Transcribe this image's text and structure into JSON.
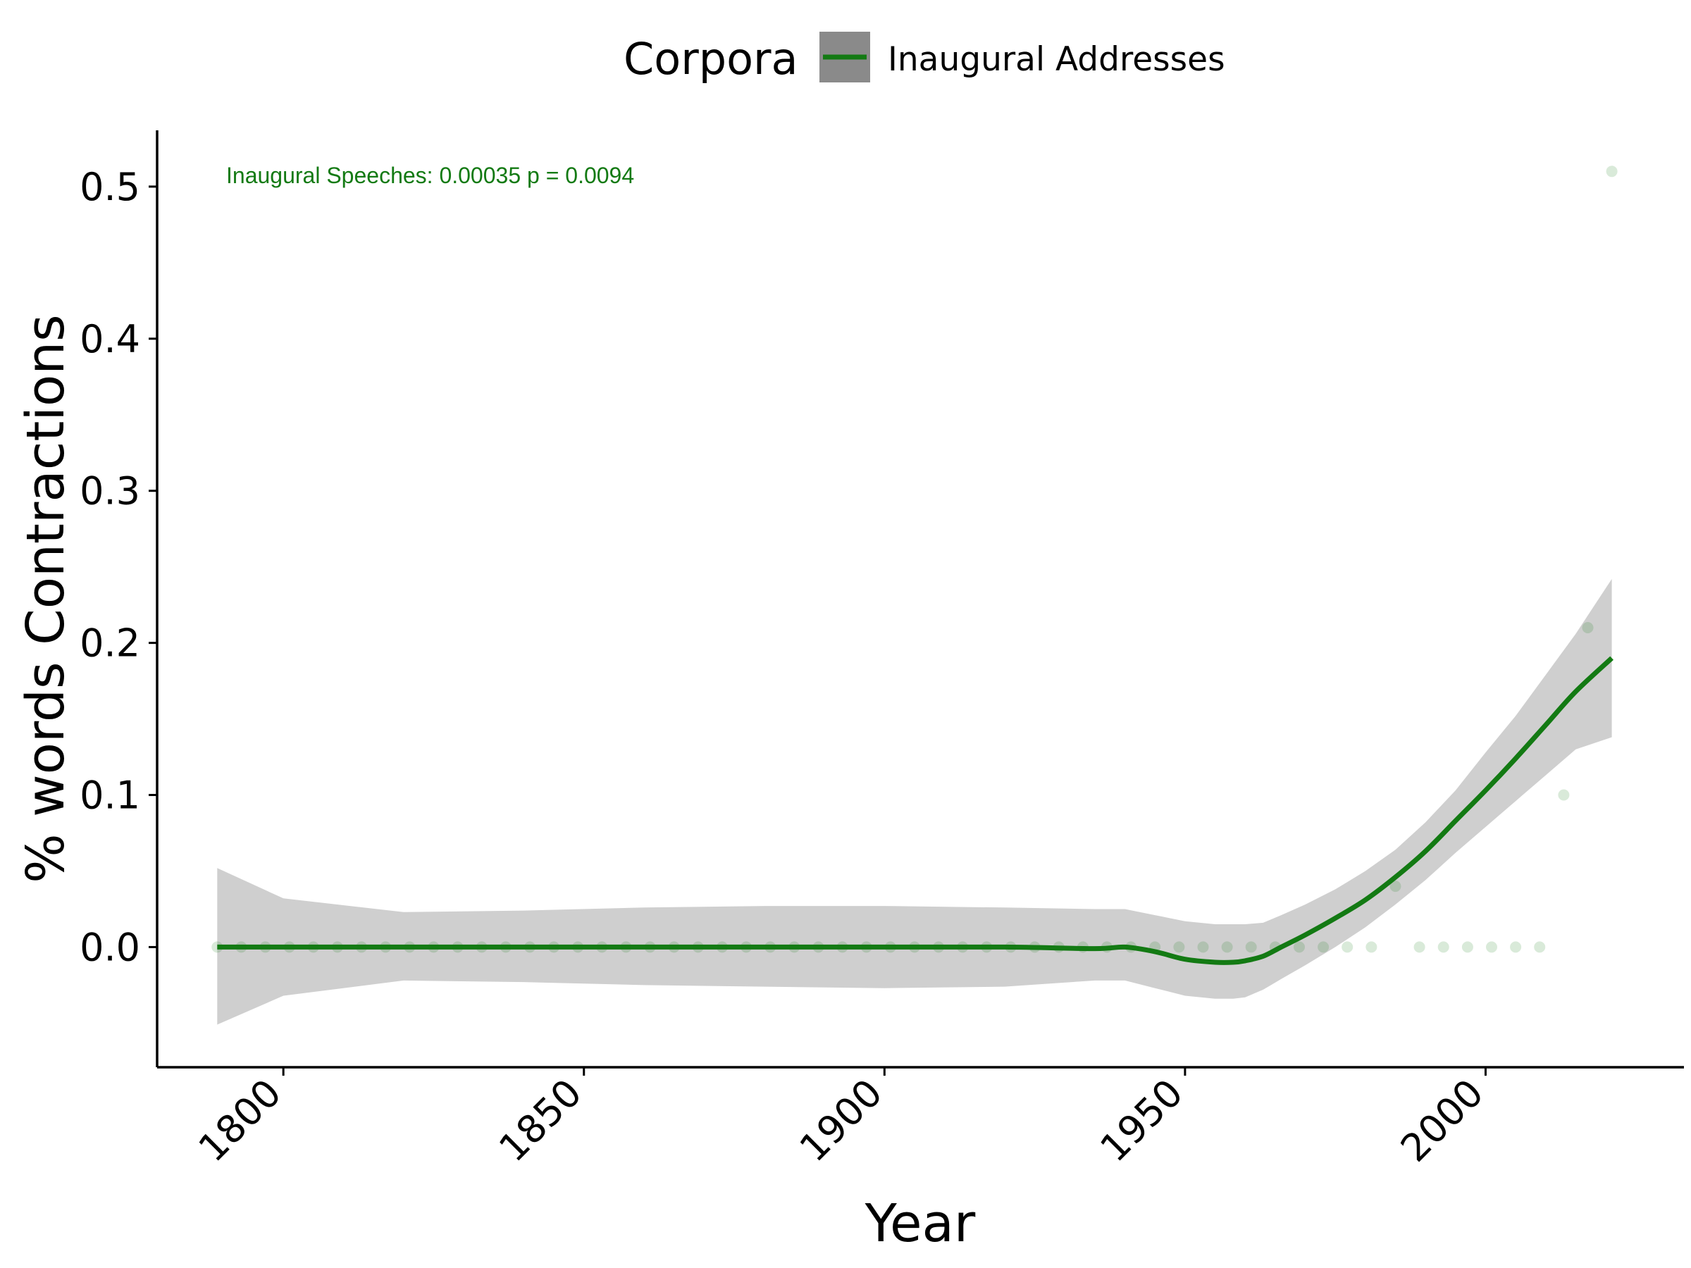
{
  "chart_data": {
    "type": "scatter",
    "title": "",
    "xlabel": "Year",
    "ylabel": "% words Contractions",
    "xlim": [
      1779,
      2033
    ],
    "ylim": [
      -0.079,
      0.537
    ],
    "x_ticks": [
      1800,
      1850,
      1900,
      1950,
      2000
    ],
    "x_tick_labels": [
      "1800",
      "1850",
      "1900",
      "1950",
      "2000"
    ],
    "y_ticks": [
      0.0,
      0.1,
      0.2,
      0.3,
      0.4,
      0.5
    ],
    "y_tick_labels": [
      "0.0",
      "0.1",
      "0.2",
      "0.3",
      "0.4",
      "0.5"
    ],
    "grid": false,
    "legend": {
      "title": "Corpora",
      "placement": "top",
      "entries": [
        "Inaugural Addresses"
      ]
    },
    "annotation": "Inaugural Speeches:  0.00035  p =  0.0094",
    "colors": {
      "series": "#137a13",
      "band": "#cfcfcf",
      "legend_key_bg": "#8a8a8a"
    },
    "series": [
      {
        "name": "Inaugural Addresses",
        "kind": "points",
        "x": [
          1789,
          1793,
          1797,
          1801,
          1805,
          1809,
          1813,
          1817,
          1821,
          1825,
          1829,
          1833,
          1837,
          1841,
          1845,
          1849,
          1853,
          1857,
          1861,
          1865,
          1869,
          1873,
          1877,
          1881,
          1885,
          1889,
          1893,
          1897,
          1901,
          1905,
          1909,
          1913,
          1917,
          1921,
          1925,
          1929,
          1933,
          1937,
          1941,
          1945,
          1949,
          1953,
          1957,
          1961,
          1965,
          1969,
          1973,
          1977,
          1981,
          1985,
          1989,
          1993,
          1997,
          2001,
          2005,
          2009,
          2013,
          2017,
          2021
        ],
        "values": [
          0,
          0,
          0,
          0,
          0,
          0,
          0,
          0,
          0,
          0,
          0,
          0,
          0,
          0,
          0,
          0,
          0,
          0,
          0,
          0,
          0,
          0,
          0,
          0,
          0,
          0,
          0,
          0,
          0,
          0,
          0,
          0,
          0,
          0,
          0,
          0,
          0,
          0,
          0,
          0,
          0,
          0,
          0,
          0,
          0,
          0,
          0,
          0,
          0,
          0.04,
          0,
          0,
          0,
          0,
          0,
          0,
          0.1,
          0.21,
          0.51
        ]
      },
      {
        "name": "Inaugural Addresses",
        "kind": "smooth",
        "x": [
          1789,
          1800,
          1820,
          1840,
          1860,
          1880,
          1900,
          1920,
          1935,
          1940,
          1945,
          1950,
          1955,
          1958,
          1960,
          1963,
          1966,
          1970,
          1975,
          1980,
          1985,
          1990,
          1995,
          2000,
          2005,
          2010,
          2015,
          2021
        ],
        "values": [
          0,
          0,
          0,
          0,
          0,
          0,
          0,
          0,
          -0.001,
          0,
          -0.003,
          -0.008,
          -0.01,
          -0.01,
          -0.009,
          -0.006,
          0,
          0.008,
          0.019,
          0.031,
          0.046,
          0.063,
          0.083,
          0.103,
          0.124,
          0.146,
          0.168,
          0.19
        ],
        "ci_lower": [
          -0.051,
          -0.032,
          -0.022,
          -0.023,
          -0.025,
          -0.026,
          -0.027,
          -0.026,
          -0.022,
          -0.022,
          -0.027,
          -0.032,
          -0.034,
          -0.034,
          -0.033,
          -0.028,
          -0.021,
          -0.012,
          0.0,
          0.013,
          0.028,
          0.044,
          0.062,
          0.079,
          0.096,
          0.113,
          0.13,
          0.138
        ],
        "ci_upper": [
          0.052,
          0.032,
          0.023,
          0.024,
          0.026,
          0.027,
          0.027,
          0.026,
          0.025,
          0.025,
          0.021,
          0.017,
          0.015,
          0.015,
          0.015,
          0.016,
          0.021,
          0.028,
          0.038,
          0.05,
          0.064,
          0.082,
          0.103,
          0.128,
          0.152,
          0.179,
          0.206,
          0.242
        ]
      }
    ]
  }
}
